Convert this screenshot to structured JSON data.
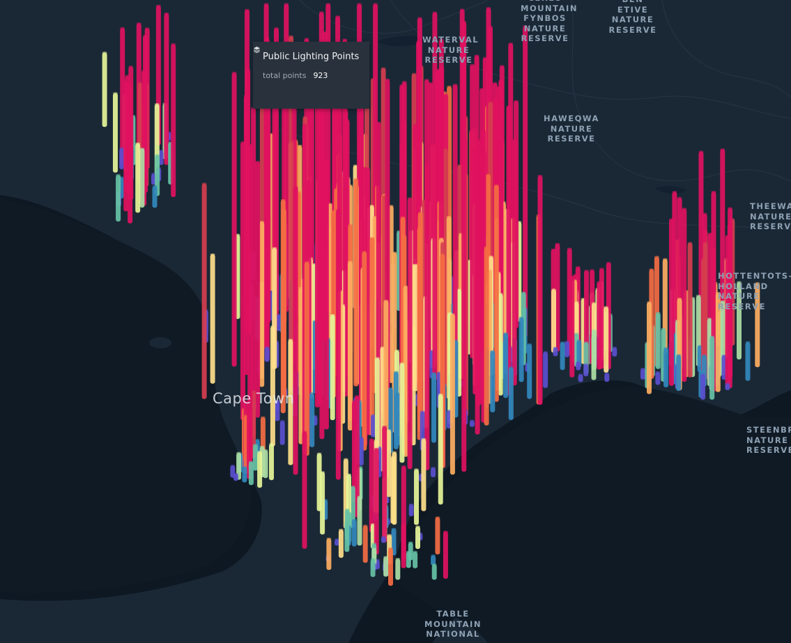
{
  "map": {
    "city_label": "Cape Town",
    "place_labels": [
      "CERES\nMOUNTAIN\nFYNBOS\nNATURE\nRESERVE",
      "BEN ETIVE\nNATURE\nRESERVE",
      "WATERVAL\nNATURE\nRESERVE",
      "HAWEQWA\nNATURE\nRESERVE",
      "THEEWATERS\nNATURE\nRESERVE",
      "HOTTENTOTS-\nHOLLAND\nNATURE\nRESERVE",
      "STEENBRAS\nNATURE\nRESERVE",
      "TABLE\nMOUNTAIN\nNATIONAL"
    ],
    "colors": {
      "background": "#0e1823",
      "land": "#1a2836",
      "water": "#0d1620",
      "ramp": [
        "#5a4fcf",
        "#3288bd",
        "#66c2a5",
        "#abdda4",
        "#e6f598",
        "#fee08b",
        "#fdae61",
        "#f46d43",
        "#d53e4f",
        "#e0115f"
      ]
    }
  },
  "tooltip": {
    "layer_icon": "layers-icon",
    "title": "Public Lighting Points",
    "field_label": "total points",
    "field_value": "923"
  }
}
